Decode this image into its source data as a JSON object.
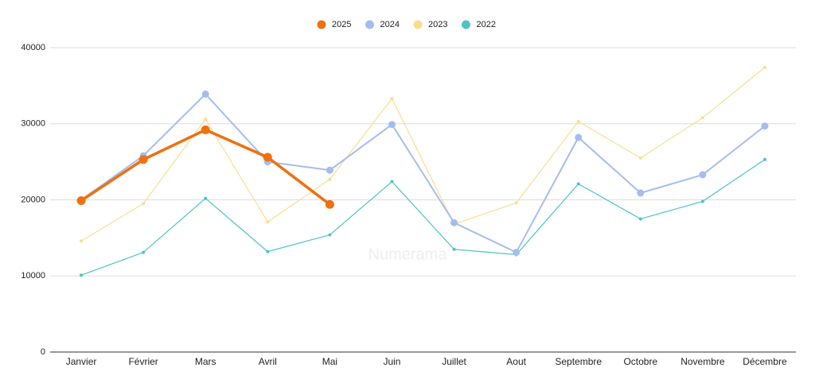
{
  "chart_data": {
    "type": "line",
    "annotation": "Numerama",
    "categories": [
      "Janvier",
      "Février",
      "Mars",
      "Avril",
      "Mai",
      "Juin",
      "Juillet",
      "Aout",
      "Septembre",
      "Octobre",
      "Novembre",
      "Décembre"
    ],
    "series": [
      {
        "name": "2025",
        "color": "#f07010",
        "values": [
          19900,
          25300,
          29200,
          25600,
          19400,
          null,
          null,
          null,
          null,
          null,
          null,
          null
        ]
      },
      {
        "name": "2024",
        "color": "#a4bdf0",
        "values": [
          20000,
          25800,
          33900,
          25000,
          23900,
          29900,
          17000,
          13100,
          28200,
          20900,
          23300,
          29700
        ]
      },
      {
        "name": "2023",
        "color": "#fcdc90",
        "values": [
          14600,
          19500,
          30600,
          17100,
          22700,
          33300,
          16800,
          19600,
          30300,
          25500,
          30800,
          37400
        ]
      },
      {
        "name": "2022",
        "color": "#4ec3c7",
        "values": [
          10100,
          13100,
          20200,
          13200,
          15400,
          22400,
          13500,
          12800,
          22100,
          17500,
          19800,
          25300
        ]
      }
    ],
    "ylim": [
      0,
      40000
    ],
    "yticks": [
      0,
      10000,
      20000,
      30000,
      40000
    ],
    "grid": true,
    "legend": "top"
  }
}
